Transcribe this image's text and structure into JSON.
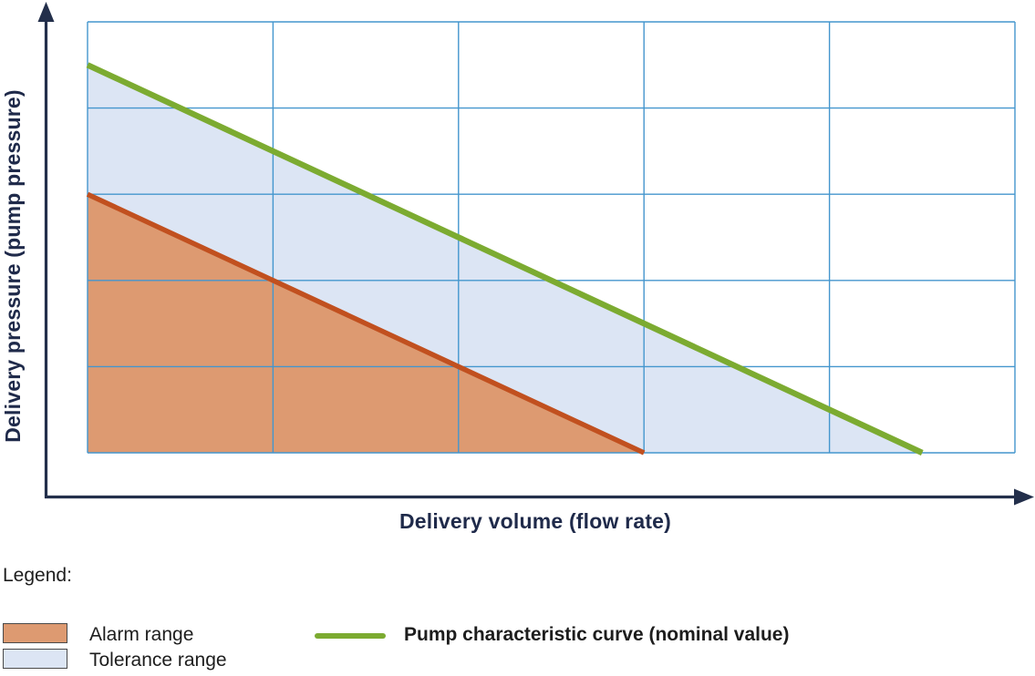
{
  "chart_data": {
    "type": "area",
    "title": "",
    "xlabel": "Delivery volume (flow rate)",
    "ylabel": "Delivery pressure (pump pressure)",
    "x_range": [
      0,
      5
    ],
    "y_range": [
      0,
      5
    ],
    "x_divisions": 5,
    "y_divisions": 5,
    "grid": true,
    "tick_labels": "none",
    "legend_position": "below-left",
    "series": [
      {
        "name": "Tolerance range",
        "type": "area",
        "fill": "#DCE5F4",
        "polygon": [
          [
            0,
            4.5
          ],
          [
            4.5,
            0
          ],
          [
            0,
            0
          ]
        ]
      },
      {
        "name": "Alarm range",
        "type": "area",
        "fill": "#DD9A71",
        "polygon": [
          [
            0,
            3
          ],
          [
            3,
            0
          ],
          [
            0,
            0
          ]
        ]
      },
      {
        "name": "Alarm range boundary",
        "type": "line",
        "color": "#C1501F",
        "width": 5.5,
        "points": [
          [
            0,
            3
          ],
          [
            3,
            0
          ]
        ]
      },
      {
        "name": "Pump characteristic curve (nominal value)",
        "type": "line",
        "color": "#7CAB31",
        "width": 6.5,
        "points": [
          [
            0,
            4.5
          ],
          [
            4.5,
            0
          ]
        ]
      }
    ]
  },
  "legend": {
    "title": "Legend:",
    "items": [
      {
        "label": "Alarm range",
        "swatch_fill": "#DD9A71",
        "swatch_type": "box"
      },
      {
        "label": "Tolerance range",
        "swatch_fill": "#DCE5F4",
        "swatch_type": "box"
      },
      {
        "label": "Pump characteristic curve (nominal value)",
        "line_color": "#7CAB31",
        "swatch_type": "line"
      }
    ]
  },
  "colors": {
    "axis": "#232F4B",
    "grid": "#4496CE",
    "axis_label_text": "#1F2A4A",
    "legend_text": "#1D1D1D",
    "background": "#FFFFFF"
  }
}
